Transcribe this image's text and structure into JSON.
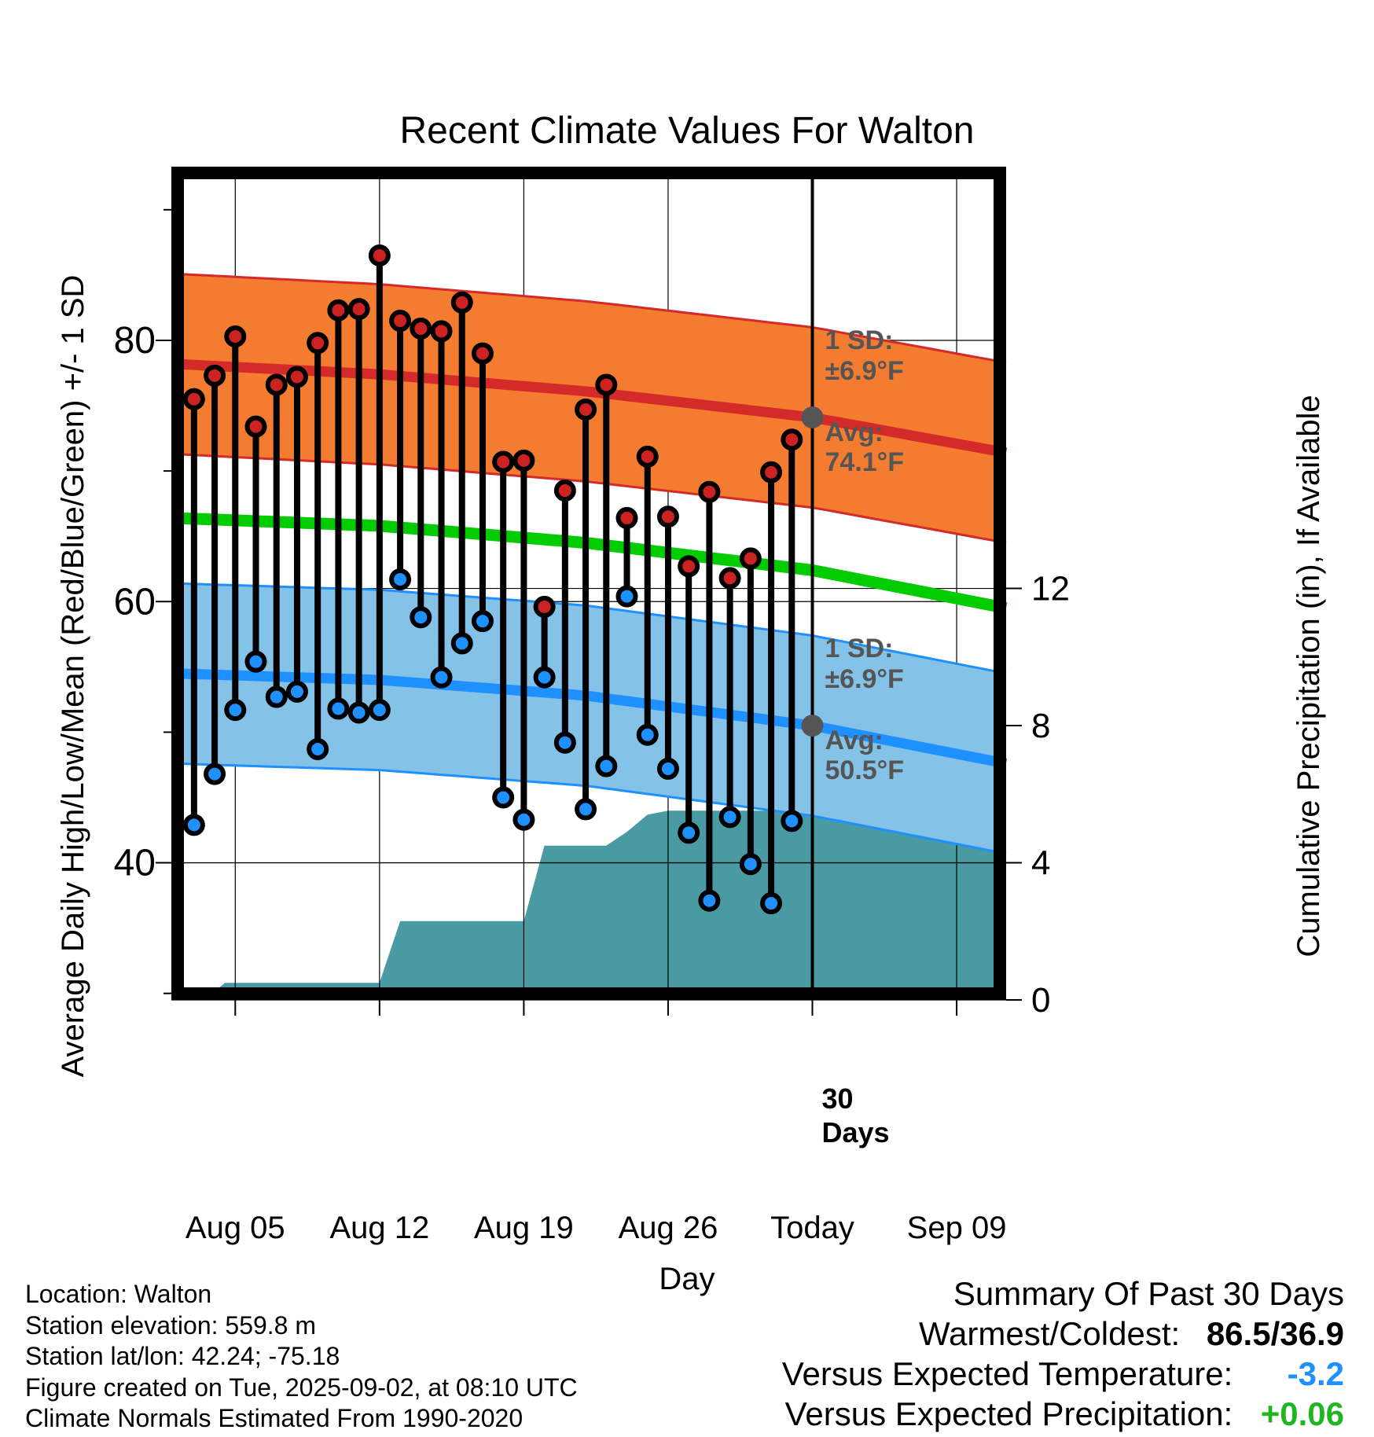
{
  "chart_data": {
    "type": "line",
    "title": "Recent Climate Values For Walton",
    "xlabel": "Day",
    "ylabel": "Average Daily High/Low/Mean (Red/Blue/Green) +/- 1 SD",
    "y2label": "Cumulative Precipitation (in), If Available",
    "x_ticks": [
      {
        "day": 5,
        "label": "Aug 05"
      },
      {
        "day": 12,
        "label": "Aug 12"
      },
      {
        "day": 19,
        "label": "Aug 19"
      },
      {
        "day": 26,
        "label": "Aug 26"
      },
      {
        "day": 33,
        "label": "Today"
      },
      {
        "day": 40,
        "label": "Sep 09"
      }
    ],
    "xlim": [
      1.9,
      42.4
    ],
    "ylim": [
      29.5,
      93.3
    ],
    "y_ticks": [
      40,
      60,
      80
    ],
    "y_minor_ticks": [
      30,
      50,
      70,
      90
    ],
    "y2lim": [
      0,
      24.3
    ],
    "y2_ticks": [
      0,
      4,
      8,
      12
    ],
    "grid": true,
    "today_day": 33,
    "today_label_line1": "30",
    "today_label_line2": "Days",
    "high_normal": {
      "x": [
        2,
        12,
        22,
        33,
        42.4
      ],
      "mean": [
        78.2,
        77.4,
        76.1,
        74.1,
        71.4
      ],
      "sd": 6.9
    },
    "low_normal": {
      "x": [
        2,
        12,
        22,
        33,
        42.4
      ],
      "mean": [
        54.5,
        54.0,
        52.8,
        50.5,
        47.6
      ],
      "sd": 6.9
    },
    "mean_normal": {
      "x": [
        2,
        12,
        22,
        33,
        42.4
      ],
      "values": [
        66.4,
        65.8,
        64.5,
        62.4,
        59.5
      ]
    },
    "high_annotation": {
      "sd_label": "1 SD:",
      "sd_value": "±6.9°F",
      "avg_label": "Avg:",
      "avg_value": "74.1°F"
    },
    "low_annotation": {
      "sd_label": "1 SD:",
      "sd_value": "±6.9°F",
      "avg_label": "Avg:",
      "avg_value": "50.5°F"
    },
    "series": [
      {
        "name": "High",
        "color": "#cc2222",
        "x": [
          3,
          4,
          5,
          6,
          7,
          8,
          9,
          10,
          11,
          12,
          13,
          14,
          15,
          16,
          17,
          18,
          19,
          20,
          21,
          22,
          23,
          24,
          25,
          26,
          27,
          28,
          29,
          30,
          31,
          32
        ],
        "values": [
          75.5,
          77.3,
          80.3,
          73.4,
          76.6,
          77.2,
          79.8,
          82.3,
          82.4,
          86.5,
          81.5,
          80.9,
          80.7,
          82.9,
          79.0,
          70.7,
          70.8,
          59.6,
          68.5,
          74.7,
          76.6,
          66.4,
          71.1,
          66.5,
          62.7,
          68.4,
          61.8,
          63.3,
          69.9,
          72.4
        ]
      },
      {
        "name": "Low",
        "color": "#1e90ff",
        "x": [
          3,
          4,
          5,
          6,
          7,
          8,
          9,
          10,
          11,
          12,
          13,
          14,
          15,
          16,
          17,
          18,
          19,
          20,
          21,
          22,
          23,
          24,
          25,
          26,
          27,
          28,
          29,
          30,
          31,
          32
        ],
        "values": [
          42.9,
          46.8,
          51.7,
          55.4,
          52.7,
          53.1,
          48.7,
          51.8,
          51.5,
          51.7,
          61.7,
          58.8,
          54.2,
          56.8,
          58.5,
          45.0,
          43.3,
          54.2,
          49.2,
          44.1,
          47.4,
          60.4,
          49.8,
          47.2,
          42.3,
          37.1,
          43.5,
          39.9,
          36.9,
          43.2
        ]
      },
      {
        "name": "Precipitation",
        "color": "#4a9aa3",
        "x": [
          2,
          3.5,
          4.5,
          12,
          13,
          19,
          20,
          23,
          24,
          25,
          26,
          33,
          42.4
        ],
        "values": [
          0,
          0,
          0.5,
          0.5,
          2.3,
          2.3,
          4.5,
          4.5,
          4.9,
          5.4,
          5.52,
          5.52,
          5.52
        ]
      }
    ],
    "colors": {
      "high_band": "#f47c30",
      "high_line": "#d42a2a",
      "low_band": "#85c2e8",
      "low_line": "#1e90ff",
      "mean_line": "#00cc00",
      "precip": "#4a9aa3",
      "marker_dot": "#555555"
    }
  },
  "footer": {
    "location": "Location: Walton",
    "elevation": "Station elevation: 559.8 m",
    "latlon": "Station lat/lon: 42.24; -75.18",
    "created": "Figure created on Tue, 2025-09-02, at 08:10 UTC",
    "normals": "Climate Normals Estimated From 1990-2020"
  },
  "summary": {
    "title": "Summary Of Past 30 Days",
    "warmest_label": "Warmest/Coldest:",
    "warmest_value": "86.5/36.9",
    "temp_label": "Versus Expected Temperature:",
    "temp_value": "-3.2",
    "temp_color": "#1e90ff",
    "precip_label": "Versus Expected Precipitation:",
    "precip_value": "+0.06",
    "precip_color": "#22b522"
  }
}
